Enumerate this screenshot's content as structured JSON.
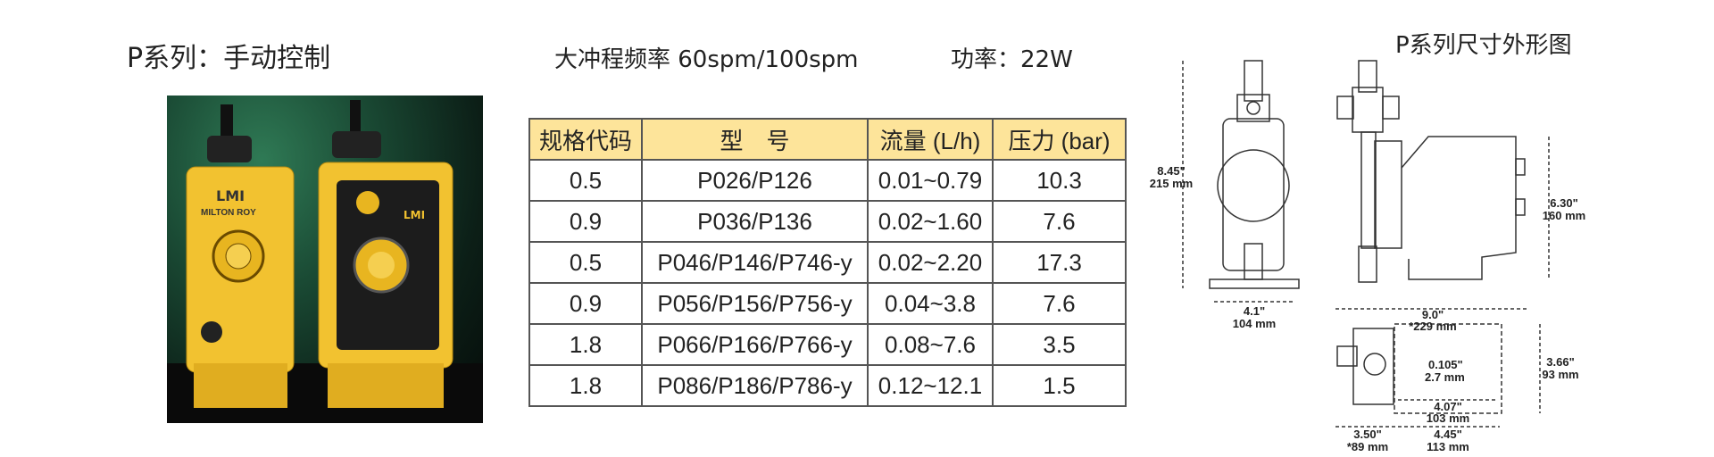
{
  "header": {
    "title": "P系列：手动控制",
    "stroke_frequency": "大冲程频率 60spm/100spm",
    "power": "功率：22W"
  },
  "photo": {
    "logo_text": "LMI",
    "brand_text": "MILTON ROY",
    "colors": {
      "pump_body": "#f2c230",
      "background": "#1a4a34"
    }
  },
  "table": {
    "header_color": "#fde49a",
    "columns": [
      "规格代码",
      "型　号",
      "流量 (L/h)",
      "压力 (bar)"
    ],
    "rows": [
      [
        "0.5",
        "P026/P126",
        "0.01~0.79",
        "10.3"
      ],
      [
        "0.9",
        "P036/P136",
        "0.02~1.60",
        "7.6"
      ],
      [
        "0.5",
        "P046/P146/P746-y",
        "0.02~2.20",
        "17.3"
      ],
      [
        "0.9",
        "P056/P156/P756-y",
        "0.04~3.8",
        "7.6"
      ],
      [
        "1.8",
        "P066/P166/P766-y",
        "0.08~7.6",
        "3.5"
      ],
      [
        "1.8",
        "P086/P186/P786-y",
        "0.12~12.1",
        "1.5"
      ]
    ]
  },
  "diagram": {
    "title": "P系列尺寸外形图",
    "dims": {
      "height_in": "8.45\"",
      "height_mm": "215 mm",
      "width_in": "4.1\"",
      "width_mm": "104 mm",
      "length_in": "9.0\"",
      "length_mm": "*229 mm",
      "body_h_in": "6.30\"",
      "body_h_mm": "160 mm",
      "depth_in": "3.66\"",
      "depth_mm": "93 mm",
      "hole_in": "0.105\"",
      "hole_mm": "2.7 mm",
      "holes_in": "4.07\"",
      "holes_mm": "103 mm",
      "head_in": "3.50\"",
      "head_mm": "*89 mm",
      "base_in": "4.45\"",
      "base_mm": "113 mm"
    }
  }
}
